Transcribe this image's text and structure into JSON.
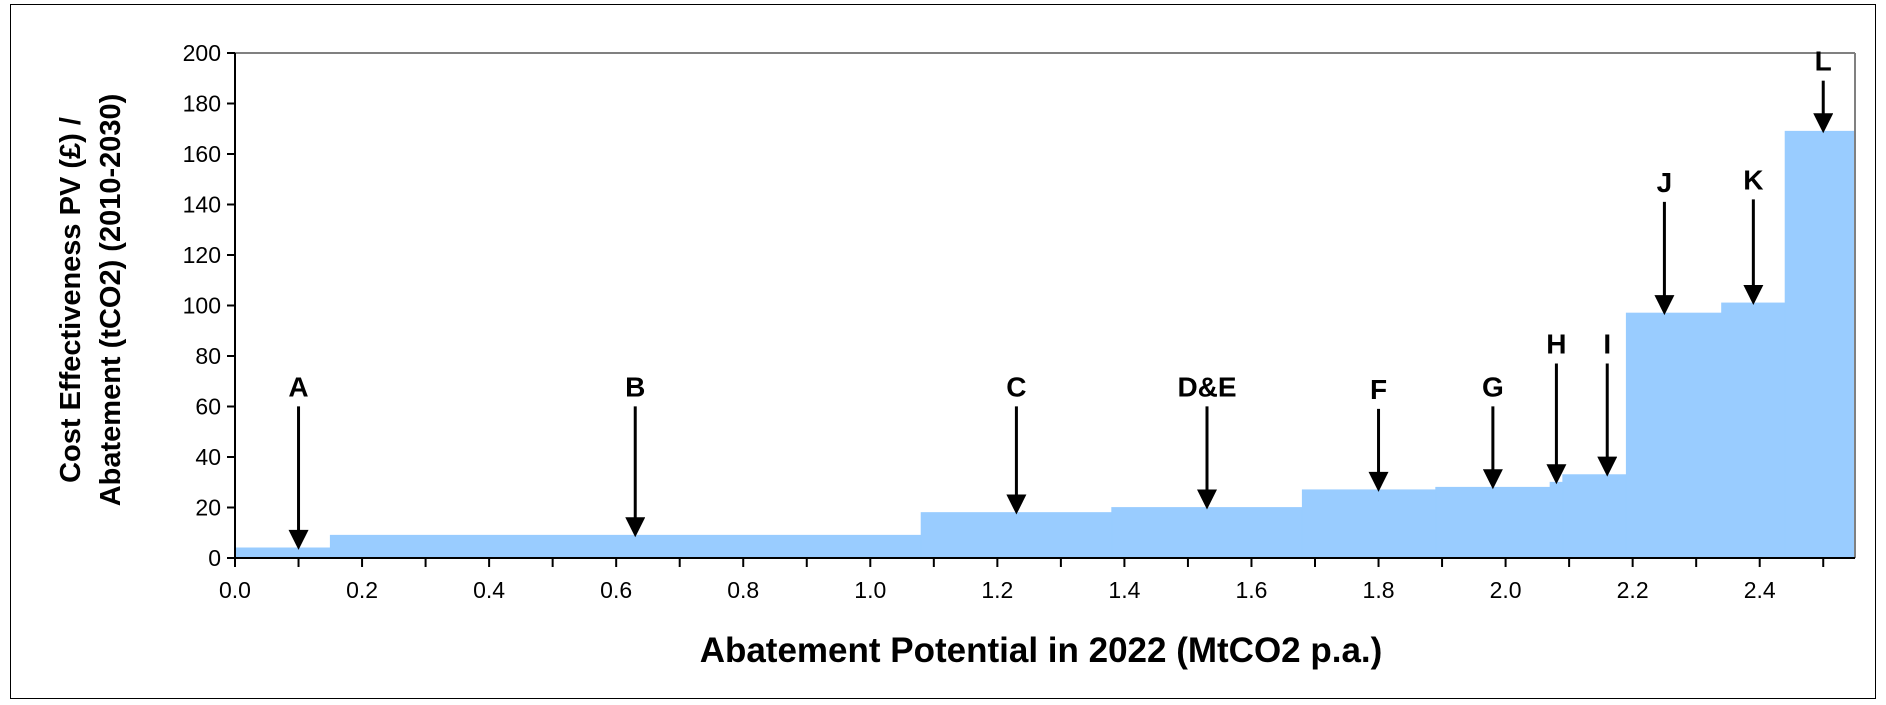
{
  "chart_data": {
    "type": "area",
    "title": "",
    "xlabel": "Abatement Potential in 2022 (MtCO2 p.a.)",
    "ylabel_line1": "Cost Effectiveness PV (£) /",
    "ylabel_line2": "Abatement (tCO2) (2010-2030)",
    "xlim": [
      0.0,
      2.55
    ],
    "ylim": [
      0,
      200
    ],
    "x_ticks": [
      "0.0",
      "0.2",
      "0.4",
      "0.6",
      "0.8",
      "1.0",
      "1.2",
      "1.4",
      "1.6",
      "1.8",
      "2.0",
      "2.2",
      "2.4"
    ],
    "y_ticks": [
      "0",
      "20",
      "40",
      "60",
      "80",
      "100",
      "120",
      "140",
      "160",
      "180",
      "200"
    ],
    "grid": false,
    "fill_color": "#99ccff",
    "steps": [
      {
        "x_start": 0.0,
        "x_end": 0.15,
        "value": 4
      },
      {
        "x_start": 0.15,
        "x_end": 1.08,
        "value": 9
      },
      {
        "x_start": 1.08,
        "x_end": 1.38,
        "value": 18
      },
      {
        "x_start": 1.38,
        "x_end": 1.68,
        "value": 20
      },
      {
        "x_start": 1.68,
        "x_end": 1.89,
        "value": 27
      },
      {
        "x_start": 1.89,
        "x_end": 2.07,
        "value": 28
      },
      {
        "x_start": 2.07,
        "x_end": 2.09,
        "value": 30
      },
      {
        "x_start": 2.09,
        "x_end": 2.19,
        "value": 33
      },
      {
        "x_start": 2.19,
        "x_end": 2.34,
        "value": 97
      },
      {
        "x_start": 2.34,
        "x_end": 2.44,
        "value": 101
      },
      {
        "x_start": 2.44,
        "x_end": 2.55,
        "value": 169
      }
    ],
    "annotations": [
      {
        "label": "A",
        "x": 0.1,
        "y": 4,
        "text_value": 64
      },
      {
        "label": "B",
        "x": 0.63,
        "y": 9,
        "text_value": 64
      },
      {
        "label": "C",
        "x": 1.23,
        "y": 18,
        "text_value": 64
      },
      {
        "label": "D&E",
        "x": 1.53,
        "y": 20,
        "text_value": 64
      },
      {
        "label": "F",
        "x": 1.8,
        "y": 27,
        "text_value": 63
      },
      {
        "label": "G",
        "x": 1.98,
        "y": 28,
        "text_value": 64
      },
      {
        "label": "H",
        "x": 2.08,
        "y": 30,
        "text_value": 81
      },
      {
        "label": "I",
        "x": 2.16,
        "y": 33,
        "text_value": 81
      },
      {
        "label": "J",
        "x": 2.25,
        "y": 97,
        "text_value": 145
      },
      {
        "label": "K",
        "x": 2.39,
        "y": 101,
        "text_value": 146
      },
      {
        "label": "L",
        "x": 2.5,
        "y": 169,
        "text_value": 193
      }
    ]
  }
}
